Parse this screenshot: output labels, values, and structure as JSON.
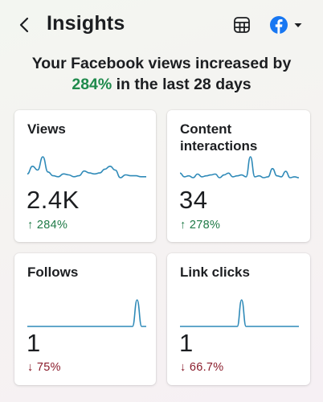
{
  "header": {
    "title": "Insights",
    "back_icon": "chevron-left-icon",
    "table_icon": "table-icon",
    "account_icon": "facebook-icon",
    "facebook_color": "#1877f2"
  },
  "headline": {
    "line1": "Your Facebook views increased by",
    "percent": "284%",
    "line2_rest": " in the last 28 days",
    "accent_color": "#1f8a4c"
  },
  "cards": [
    {
      "label": "Views",
      "value": "2.4K",
      "change": "↑ 284%",
      "direction": "up",
      "trend": [
        22,
        14,
        18,
        4,
        20,
        24,
        25,
        22,
        23,
        25,
        24,
        19,
        21,
        22,
        21,
        17,
        14,
        18,
        26,
        23,
        24,
        24,
        25,
        25
      ]
    },
    {
      "label": "Content interactions",
      "value": "34",
      "change": "↑ 278%",
      "direction": "up",
      "trend": [
        22,
        26,
        25,
        27,
        23,
        26,
        25,
        24,
        23,
        27,
        24,
        22,
        26,
        25,
        24,
        26,
        4,
        26,
        25,
        27,
        26,
        17,
        25,
        26,
        20,
        27,
        26,
        27
      ]
    },
    {
      "label": "Follows",
      "value": "1",
      "change": "↓ 75%",
      "direction": "down",
      "trend": [
        0,
        0,
        0,
        0,
        0,
        0,
        0,
        0,
        0,
        0,
        0,
        0,
        0,
        0,
        0,
        0,
        0,
        0,
        0,
        0,
        0,
        0,
        0,
        0,
        1,
        0,
        0
      ]
    },
    {
      "label": "Link clicks",
      "value": "1",
      "change": "↓ 66.7%",
      "direction": "down",
      "trend": [
        0,
        0,
        0,
        0,
        0,
        0,
        0,
        0,
        0,
        0,
        0,
        0,
        0,
        0,
        1,
        0,
        0,
        0,
        0,
        0,
        0,
        0,
        0,
        0,
        0,
        0,
        0,
        0
      ]
    }
  ]
}
